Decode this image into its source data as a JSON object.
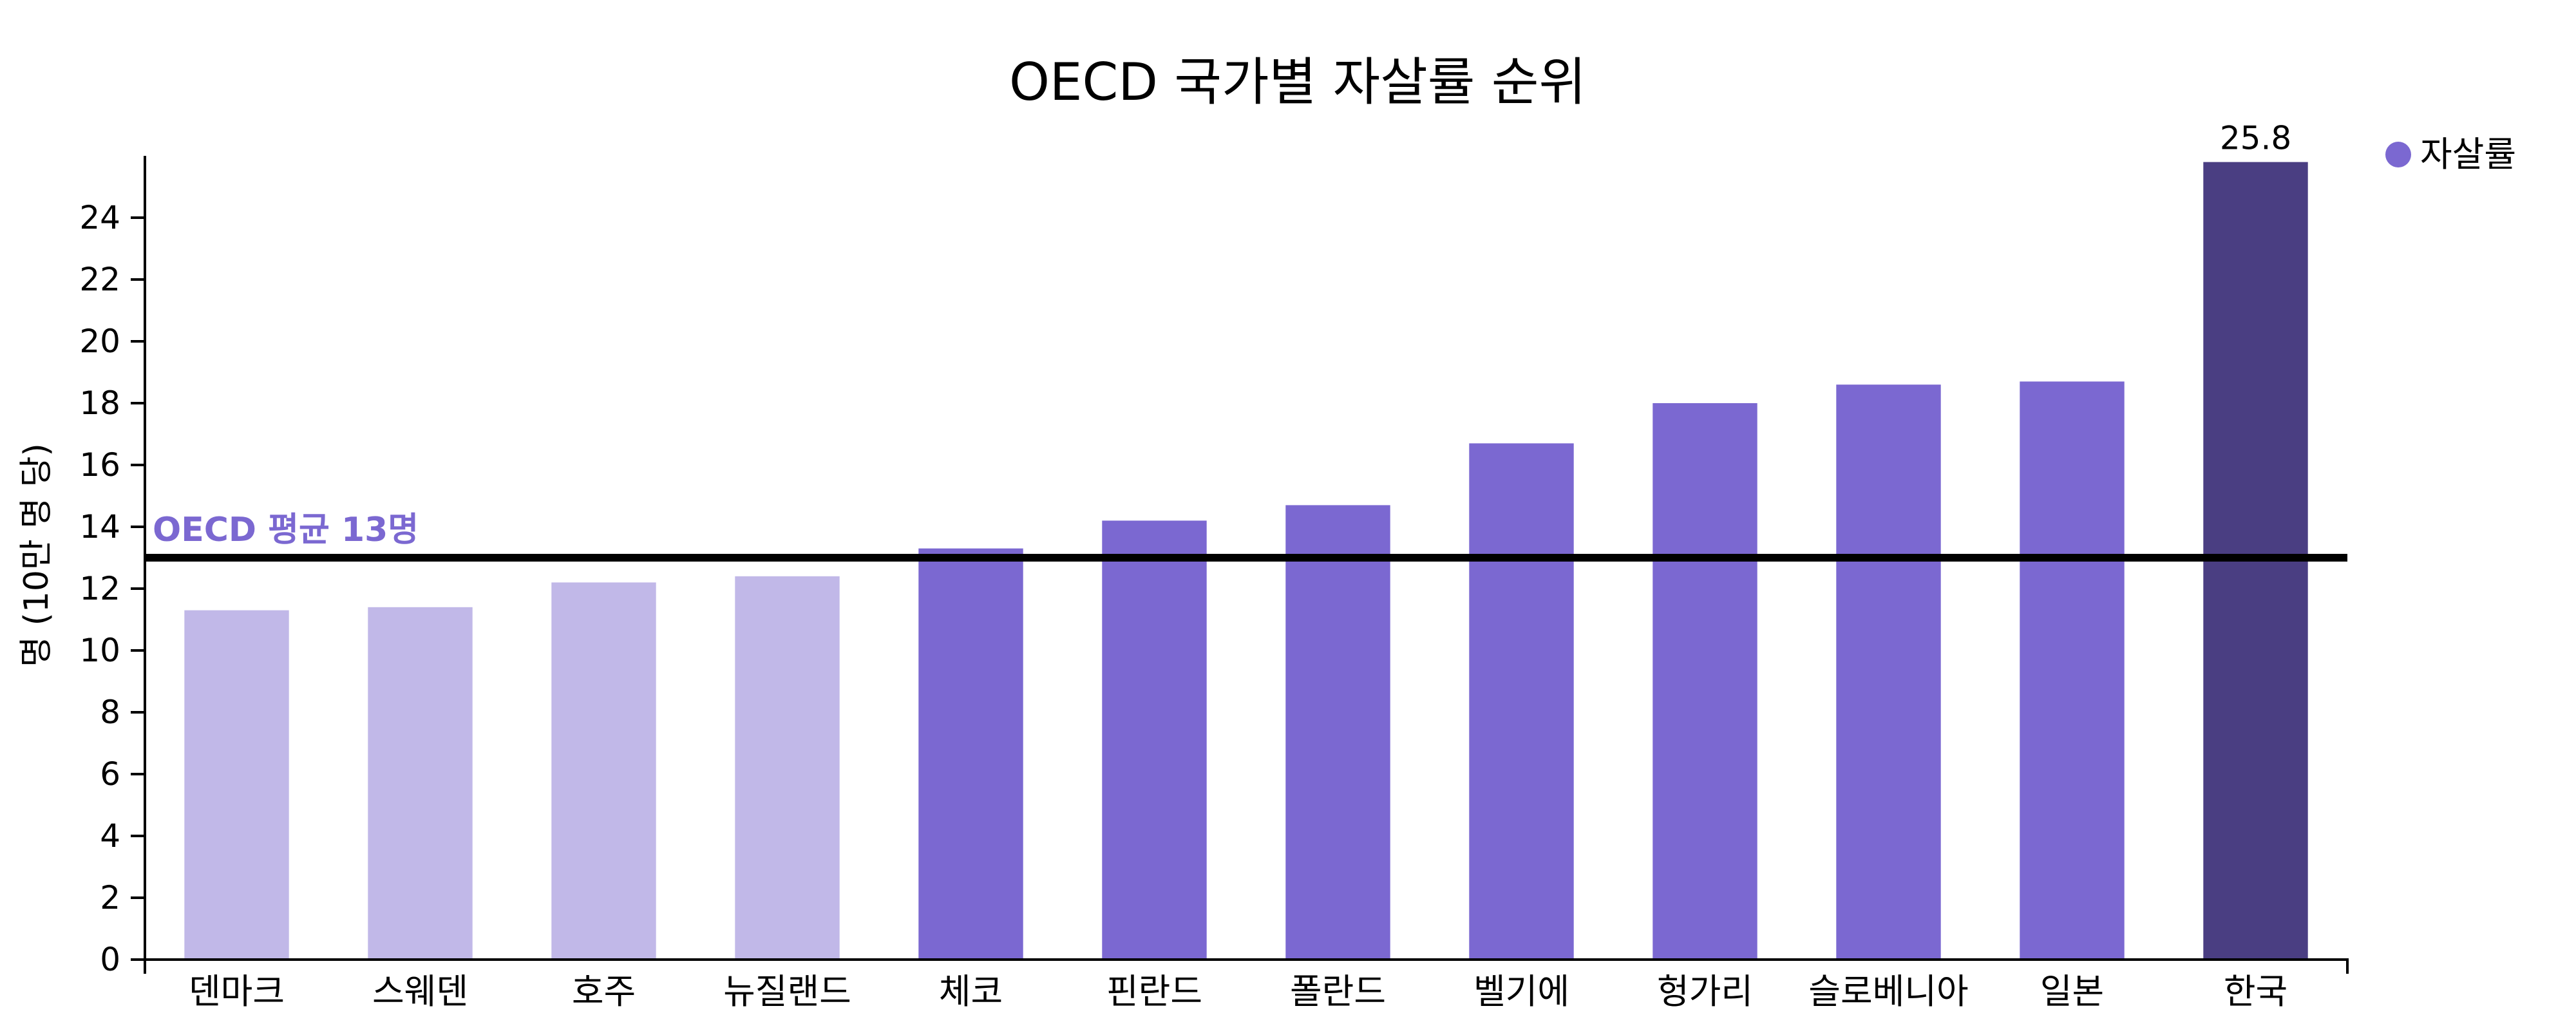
{
  "chart_data": {
    "type": "bar",
    "title": "OECD 국가별 자살률 순위",
    "xlabel": "",
    "ylabel": "명 (10만 명 당)",
    "categories": [
      "덴마크",
      "스웨덴",
      "호주",
      "뉴질랜드",
      "체코",
      "핀란드",
      "폴란드",
      "벨기에",
      "헝가리",
      "슬로베니아",
      "일본",
      "한국"
    ],
    "series": [
      {
        "name": "자살률",
        "values": [
          11.3,
          11.4,
          12.2,
          12.4,
          13.3,
          14.2,
          14.7,
          16.7,
          18.0,
          18.6,
          18.7,
          25.8
        ]
      }
    ],
    "ylim": [
      0,
      26
    ],
    "yticks": [
      0,
      2,
      4,
      6,
      8,
      10,
      12,
      14,
      16,
      18,
      20,
      22,
      24
    ],
    "grid": false,
    "legend": {
      "position": "top-right",
      "entries": [
        "자살률"
      ]
    },
    "data_labels": [
      {
        "category": "한국",
        "text": "25.8"
      }
    ],
    "reference_line": {
      "value": 13,
      "label": "OECD 평균 13명",
      "color": "#7b68d1"
    },
    "colors": {
      "below_average": "#c1b8e8",
      "above_average": "#7b68d1",
      "highlight": "#4a3e82",
      "legend_marker": "#7b68d1",
      "reference_line": "#000000"
    }
  }
}
